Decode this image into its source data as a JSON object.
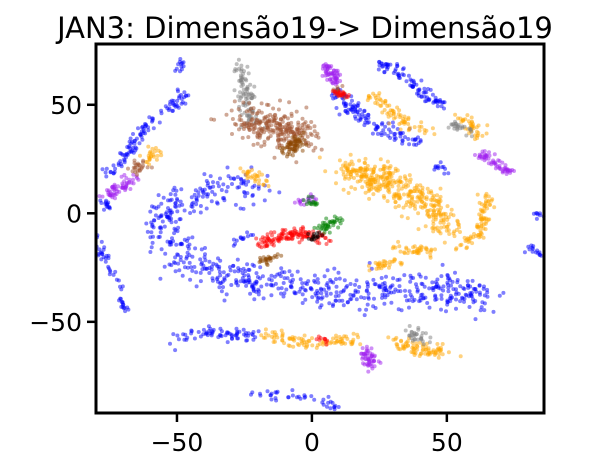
{
  "chart_data": {
    "type": "scatter",
    "title": "JAN3: Dimensão19-> Dimensão19",
    "xlabel": "",
    "ylabel": "",
    "xlim": [
      -80,
      86
    ],
    "ylim": [
      -92,
      78
    ],
    "xticks": [
      -50,
      0,
      50
    ],
    "yticks": [
      50,
      0,
      -50
    ],
    "xtick_labels": [
      "−50",
      "0",
      "50"
    ],
    "ytick_labels": [
      "50",
      "0",
      "−50"
    ],
    "grid": false,
    "legend": "none",
    "series": [
      {
        "color": "#0000ff",
        "clusters": [
          {
            "path": [
              [
                -20,
                12
              ],
              [
                -38,
                11
              ],
              [
                -50,
                6
              ],
              [
                -56,
                -4
              ],
              [
                -52,
                -15
              ],
              [
                -40,
                -26
              ],
              [
                -20,
                -32
              ],
              [
                5,
                -35
              ],
              [
                30,
                -36
              ],
              [
                50,
                -36
              ],
              [
                65,
                -38
              ]
            ],
            "width": 9,
            "n": 650
          },
          {
            "path": [
              [
                -76,
                18
              ],
              [
                -68,
                28
              ],
              [
                -62,
                40
              ],
              [
                -50,
                50
              ],
              [
                -48,
                56
              ]
            ],
            "width": 3,
            "n": 110
          },
          {
            "path": [
              [
                -75,
                3
              ],
              [
                -78,
                5
              ]
            ],
            "width": 2,
            "n": 15
          },
          {
            "path": [
              [
                -80,
                -10
              ],
              [
                -76,
                -25
              ],
              [
                -70,
                -34
              ]
            ],
            "width": 2,
            "n": 35
          },
          {
            "path": [
              [
                -72,
                -40
              ],
              [
                -68,
                -45
              ]
            ],
            "width": 2,
            "n": 15
          },
          {
            "path": [
              [
                -50,
                -58
              ],
              [
                -38,
                -55
              ],
              [
                -20,
                -56
              ]
            ],
            "width": 3,
            "n": 70
          },
          {
            "path": [
              [
                -50,
                66
              ],
              [
                -48,
                70
              ]
            ],
            "width": 2,
            "n": 12
          },
          {
            "path": [
              [
                -22,
                -10
              ],
              [
                -28,
                -13
              ]
            ],
            "width": 2,
            "n": 12
          },
          {
            "path": [
              [
                -24,
                -83
              ],
              [
                -12,
                -84
              ],
              [
                0,
                -85
              ],
              [
                10,
                -90
              ]
            ],
            "width": 2,
            "n": 40
          },
          {
            "path": [
              [
                25,
                70
              ],
              [
                35,
                62
              ],
              [
                42,
                55
              ],
              [
                48,
                50
              ]
            ],
            "width": 3,
            "n": 90
          },
          {
            "path": [
              [
                9,
                56
              ],
              [
                14,
                48
              ],
              [
                24,
                40
              ],
              [
                40,
                32
              ]
            ],
            "width": 4,
            "n": 120
          },
          {
            "path": [
              [
                45,
                22
              ],
              [
                50,
                20
              ]
            ],
            "width": 2,
            "n": 12
          },
          {
            "path": [
              [
                80,
                -15
              ],
              [
                84,
                -20
              ]
            ],
            "width": 2,
            "n": 15
          },
          {
            "path": [
              [
                82,
                0
              ],
              [
                85,
                -2
              ]
            ],
            "width": 2,
            "n": 10
          }
        ]
      },
      {
        "color": "#ffa500",
        "clusters": [
          {
            "path": [
              [
                12,
                20
              ],
              [
                25,
                16
              ],
              [
                40,
                8
              ],
              [
                50,
                -5
              ]
            ],
            "width": 8,
            "n": 380
          },
          {
            "path": [
              [
                65,
                8
              ],
              [
                62,
                -10
              ],
              [
                55,
                -16
              ]
            ],
            "width": 3,
            "n": 80
          },
          {
            "path": [
              [
                22,
                -25
              ],
              [
                32,
                -22
              ]
            ],
            "width": 3,
            "n": 30
          },
          {
            "path": [
              [
                32,
                -17
              ],
              [
                45,
                -17
              ]
            ],
            "width": 3,
            "n": 40
          },
          {
            "path": [
              [
                -18,
                -56
              ],
              [
                0,
                -60
              ],
              [
                16,
                -58
              ]
            ],
            "width": 3,
            "n": 90
          },
          {
            "path": [
              [
                30,
                -60
              ],
              [
                50,
                -65
              ]
            ],
            "width": 4,
            "n": 80
          },
          {
            "path": [
              [
                -25,
                20
              ],
              [
                -18,
                14
              ]
            ],
            "width": 3,
            "n": 30
          },
          {
            "path": [
              [
                -58,
                30
              ],
              [
                -60,
                25
              ]
            ],
            "width": 3,
            "n": 25
          },
          {
            "path": [
              [
                22,
                54
              ],
              [
                36,
                40
              ],
              [
                44,
                38
              ]
            ],
            "width": 4,
            "n": 70
          },
          {
            "path": [
              [
                56,
                44
              ],
              [
                62,
                36
              ]
            ],
            "width": 3,
            "n": 40
          }
        ]
      },
      {
        "color": "#a020f0",
        "clusters": [
          {
            "path": [
              [
                5,
                68
              ],
              [
                10,
                60
              ]
            ],
            "width": 3,
            "n": 60
          },
          {
            "path": [
              [
                -76,
                8
              ],
              [
                -66,
                16
              ]
            ],
            "width": 3,
            "n": 60
          },
          {
            "path": [
              [
                20,
                -62
              ],
              [
                22,
                -70
              ]
            ],
            "width": 3,
            "n": 50
          },
          {
            "path": [
              [
                62,
                28
              ],
              [
                74,
                18
              ]
            ],
            "width": 3,
            "n": 60
          },
          {
            "path": [
              [
                -5,
                5
              ],
              [
                2,
                7
              ]
            ],
            "width": 2,
            "n": 20
          }
        ]
      },
      {
        "color": "#808080",
        "clusters": [
          {
            "path": [
              [
                -26,
                68
              ],
              [
                -24,
                50
              ],
              [
                -22,
                42
              ]
            ],
            "width": 4,
            "n": 90
          },
          {
            "path": [
              [
                52,
                41
              ],
              [
                60,
                36
              ]
            ],
            "width": 2,
            "n": 25
          },
          {
            "path": [
              [
                36,
                -55
              ],
              [
                42,
                -58
              ]
            ],
            "width": 3,
            "n": 30
          }
        ]
      },
      {
        "color": "#a0522d",
        "clusters": [
          {
            "path": [
              [
                -26,
                42
              ],
              [
                -12,
                40
              ],
              [
                -4,
                34
              ]
            ],
            "width": 9,
            "n": 260
          },
          {
            "path": [
              [
                -62,
                22
              ],
              [
                -66,
                20
              ]
            ],
            "width": 3,
            "n": 25
          },
          {
            "path": [
              [
                8,
                58
              ],
              [
                12,
                54
              ]
            ],
            "width": 2,
            "n": 15
          }
        ]
      },
      {
        "color": "#8b4500",
        "clusters": [
          {
            "path": [
              [
                -10,
                28
              ],
              [
                -4,
                34
              ]
            ],
            "width": 4,
            "n": 60
          },
          {
            "path": [
              [
                -20,
                -22
              ],
              [
                -12,
                -20
              ]
            ],
            "width": 2,
            "n": 25
          }
        ]
      },
      {
        "color": "#ff0000",
        "clusters": [
          {
            "path": [
              [
                -20,
                -14
              ],
              [
                -10,
                -10
              ],
              [
                0,
                -10
              ],
              [
                6,
                -12
              ]
            ],
            "width": 3,
            "n": 130
          },
          {
            "path": [
              [
                8,
                56
              ],
              [
                14,
                54
              ]
            ],
            "width": 2,
            "n": 20
          },
          {
            "path": [
              [
                2,
                -58
              ],
              [
                6,
                -58
              ]
            ],
            "width": 2,
            "n": 10
          }
        ]
      },
      {
        "color": "#008000",
        "clusters": [
          {
            "path": [
              [
                4,
                -8
              ],
              [
                8,
                -4
              ],
              [
                10,
                -2
              ]
            ],
            "width": 3,
            "n": 40
          },
          {
            "path": [
              [
                -2,
                6
              ],
              [
                2,
                5
              ]
            ],
            "width": 2,
            "n": 15
          }
        ]
      },
      {
        "color": "#000000",
        "clusters": [
          {
            "path": [
              [
                -1,
                -11
              ],
              [
                3,
                -9
              ]
            ],
            "width": 2,
            "n": 15
          }
        ]
      }
    ]
  }
}
